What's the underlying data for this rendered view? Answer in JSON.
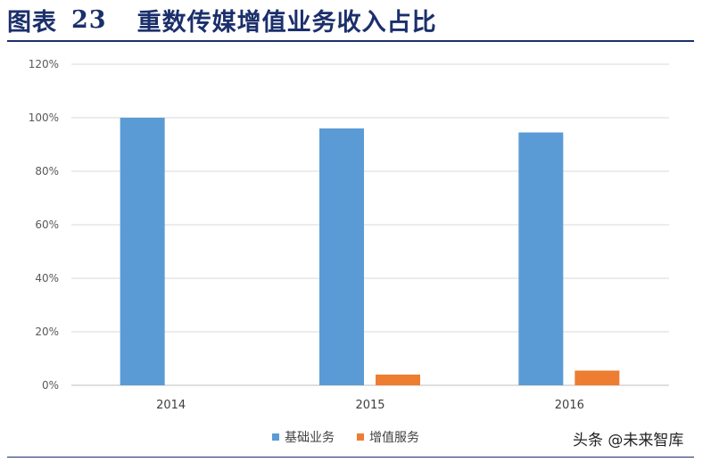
{
  "header": {
    "label": "图表",
    "number": "23",
    "title": "重数传媒增值业务收入占比"
  },
  "watermark": "头条 @未来智库",
  "chart_data": {
    "type": "bar",
    "categories": [
      "2014",
      "2015",
      "2016"
    ],
    "series": [
      {
        "name": "基础业务",
        "values": [
          100,
          96,
          94.5
        ],
        "color": "#5b9bd5"
      },
      {
        "name": "增值服务",
        "values": [
          0,
          4,
          5.5
        ],
        "color": "#ed7d31"
      }
    ],
    "ylim": [
      0,
      120
    ],
    "yticks": [
      0,
      20,
      40,
      60,
      80,
      100,
      120
    ],
    "ytick_suffix": "%",
    "grid": true,
    "legend": "bottom"
  }
}
